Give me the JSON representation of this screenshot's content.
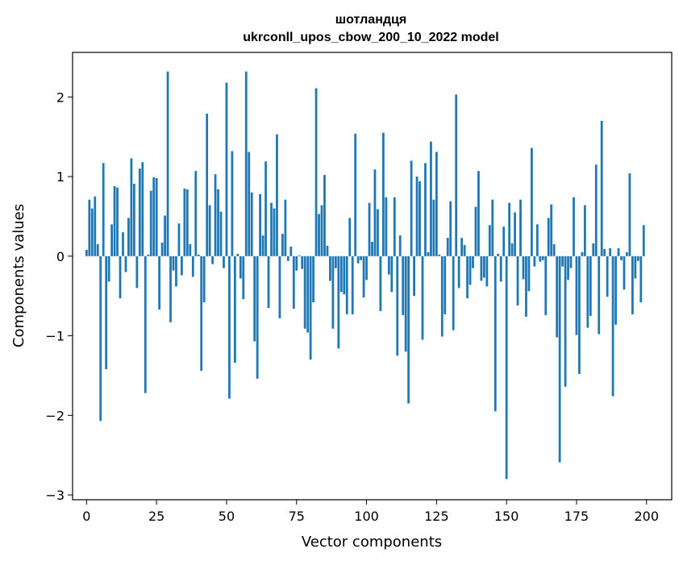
{
  "chart_data": {
    "type": "bar",
    "title": "шотландця",
    "subtitle": "ukrconll_upos_cbow_200_10_2022 model",
    "xlabel": "Vector components",
    "ylabel": "Components values",
    "xlim": [
      -5,
      209
    ],
    "ylim": [
      -3.06,
      2.56
    ],
    "xticks": [
      0,
      25,
      50,
      75,
      100,
      125,
      150,
      175,
      200
    ],
    "yticks": [
      -3,
      -2,
      -1,
      0,
      1,
      2
    ],
    "grid": false,
    "color": "#1f77b4",
    "x_start": 0,
    "values": [
      0.08,
      0.71,
      0.6,
      0.75,
      0.15,
      -2.07,
      1.17,
      -1.42,
      -0.32,
      0.4,
      0.88,
      0.86,
      -0.53,
      0.3,
      -0.2,
      0.48,
      1.23,
      0.91,
      -0.4,
      1.1,
      1.18,
      -1.72,
      0.02,
      0.82,
      0.99,
      0.98,
      -0.67,
      0.17,
      0.51,
      2.32,
      -0.83,
      -0.18,
      -0.38,
      0.41,
      -0.24,
      0.85,
      0.84,
      0.15,
      -0.26,
      1.07,
      0.02,
      -1.44,
      -0.58,
      1.79,
      0.64,
      -0.1,
      1.03,
      0.84,
      0.56,
      -0.15,
      2.18,
      -1.79,
      1.32,
      -1.34,
      0.03,
      -0.28,
      -0.54,
      2.32,
      1.31,
      0.8,
      -1.07,
      -1.54,
      0.78,
      0.26,
      1.19,
      -0.65,
      0.67,
      0.6,
      1.53,
      -0.78,
      0.28,
      0.71,
      -0.06,
      0.12,
      -0.66,
      -0.18,
      0.01,
      -0.16,
      -0.91,
      -0.96,
      -1.3,
      -0.58,
      2.11,
      0.53,
      0.64,
      1.02,
      0.13,
      -0.31,
      -0.91,
      -0.15,
      -1.16,
      -0.45,
      -0.48,
      -0.73,
      0.48,
      -0.73,
      1.54,
      -0.09,
      -0.05,
      -0.52,
      -0.3,
      0.67,
      0.18,
      1.09,
      0.59,
      -0.69,
      1.55,
      0.74,
      -0.23,
      -0.45,
      0.74,
      -1.25,
      0.26,
      -0.74,
      -1.2,
      -1.85,
      1.2,
      -0.5,
      1.0,
      0.94,
      -1.05,
      1.17,
      0.05,
      1.44,
      0.71,
      1.31,
      0.02,
      -1.01,
      -0.73,
      0.23,
      0.69,
      -0.93,
      2.03,
      -0.4,
      0.23,
      0.14,
      -0.53,
      -0.36,
      -0.15,
      0.62,
      1.07,
      -0.31,
      -0.27,
      -0.38,
      0.39,
      0.71,
      -1.95,
      0.03,
      -0.32,
      0.37,
      -2.8,
      0.67,
      0.16,
      0.55,
      -0.62,
      0.71,
      -0.29,
      -0.76,
      -0.44,
      1.36,
      -0.13,
      0.4,
      -0.07,
      -0.05,
      -0.74,
      0.48,
      0.65,
      0.15,
      -1.02,
      -2.59,
      -0.13,
      -1.64,
      -0.3,
      -0.15,
      0.74,
      -0.99,
      -1.48,
      0.05,
      0.64,
      -0.9,
      -0.75,
      0.16,
      1.15,
      -0.98,
      1.7,
      0.09,
      -0.51,
      0.1,
      -1.76,
      -0.86,
      0.1,
      -0.05,
      -0.42,
      0.05,
      1.04,
      -0.73,
      -0.28,
      -0.06,
      -0.58,
      0.39
    ],
    "note_indices": []
  },
  "colors": {
    "bar": "#1f77b4",
    "axis": "#000000",
    "background": "#ffffff"
  }
}
